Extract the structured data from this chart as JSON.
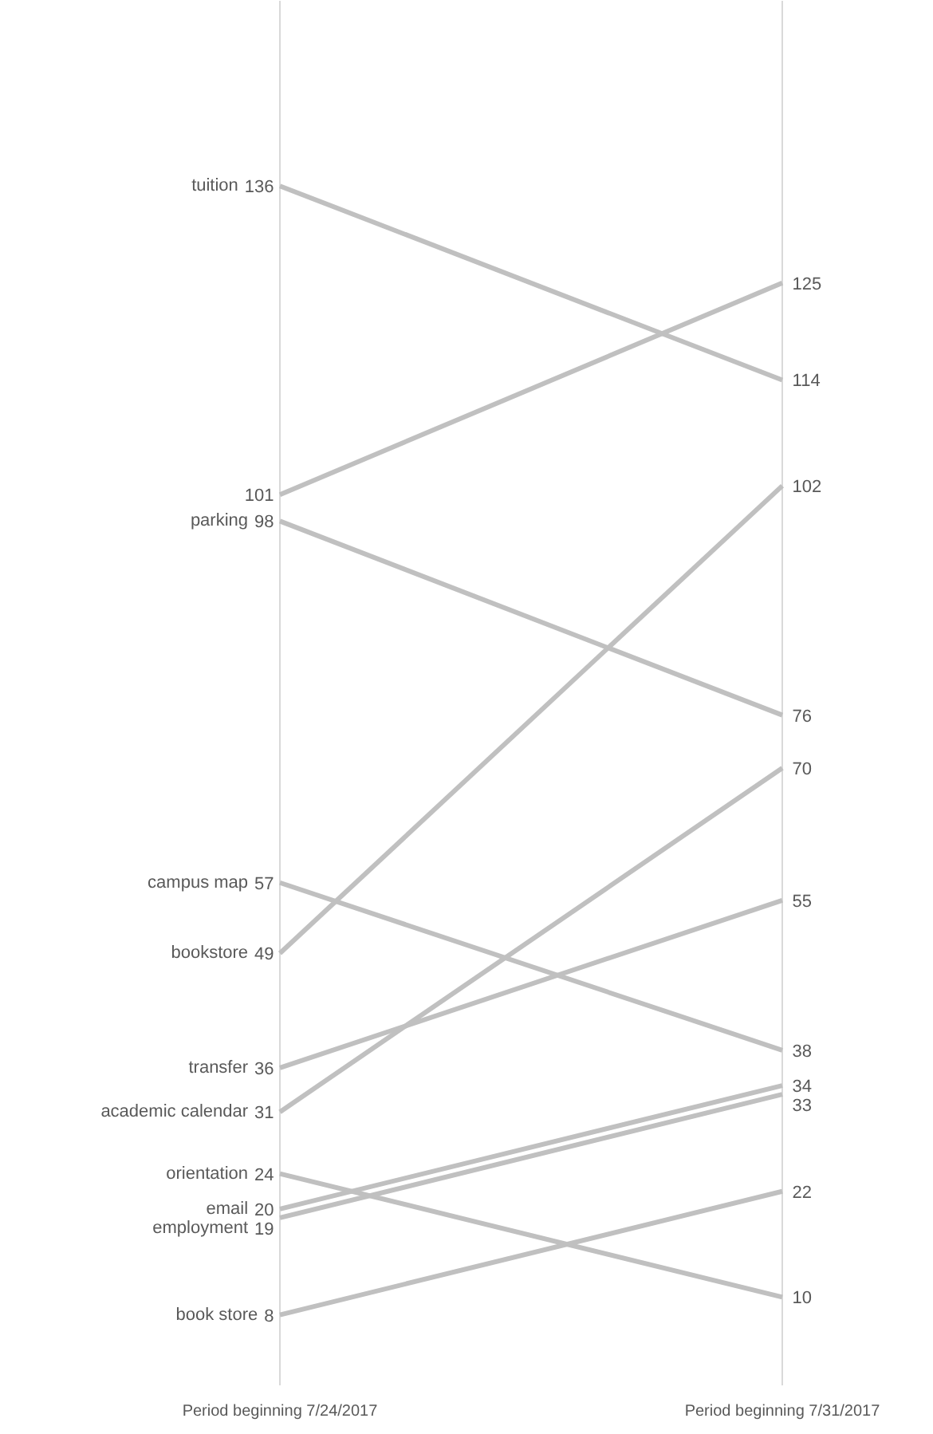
{
  "chart_data": {
    "type": "line",
    "categories": [
      "Period beginning 7/24/2017",
      "Period beginning 7/31/2017"
    ],
    "ylim": [
      0,
      157
    ],
    "grid": "x",
    "tick_labels": "x",
    "marker": "none",
    "data_labels": true,
    "series": [
      {
        "name": "tuition",
        "color": "#c0c0c0",
        "values": [
          136,
          114
        ]
      },
      {
        "color": "#c0c0c0",
        "values": [
          101,
          125
        ]
      },
      {
        "name": "parking",
        "color": "#c0c0c0",
        "values": [
          98,
          76
        ]
      },
      {
        "name": "campus map",
        "color": "#c0c0c0",
        "values": [
          57,
          38
        ]
      },
      {
        "name": "bookstore",
        "color": "#c0c0c0",
        "values": [
          49,
          102
        ]
      },
      {
        "name": "transfer",
        "color": "#c0c0c0",
        "values": [
          36,
          55
        ]
      },
      {
        "name": "academic calendar",
        "color": "#c0c0c0",
        "values": [
          31,
          70
        ]
      },
      {
        "name": "orientation",
        "color": "#c0c0c0",
        "values": [
          24,
          10
        ]
      },
      {
        "name": "email",
        "color": "#c0c0c0",
        "values": [
          20,
          34
        ]
      },
      {
        "name": "employment",
        "color": "#c0c0c0",
        "values": [
          19,
          33
        ]
      },
      {
        "name": "book store",
        "color": "#c0c0c0",
        "values": [
          8,
          22
        ]
      }
    ]
  }
}
